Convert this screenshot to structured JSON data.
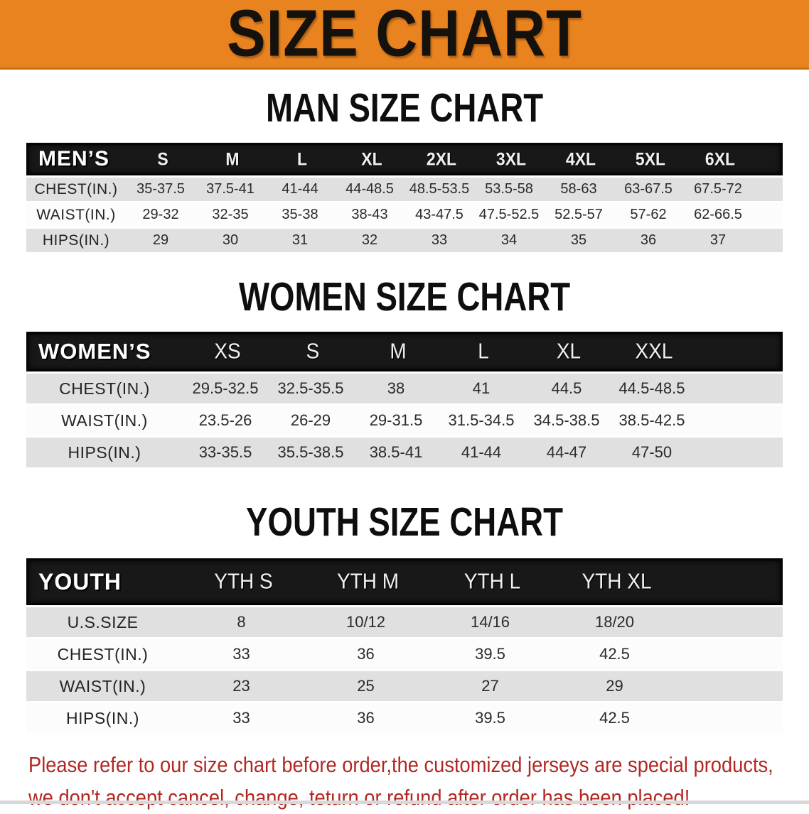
{
  "banner": {
    "title": "SIZE CHART"
  },
  "colors": {
    "banner_bg": "#E8831F",
    "table_header_bg": "#181818",
    "row_gray": "#E0E0E0",
    "row_white": "#FCFCFC",
    "note_red": "#B22722"
  },
  "sections": [
    {
      "heading": "MAN SIZE CHART",
      "table": {
        "header_label": "MEN’S",
        "columns": [
          "S",
          "M",
          "L",
          "XL",
          "2XL",
          "3XL",
          "4XL",
          "5XL",
          "6XL"
        ],
        "rows": [
          {
            "label": "CHEST(IN.)",
            "values": [
              "35-37.5",
              "37.5-41",
              "41-44",
              "44-48.5",
              "48.5-53.5",
              "53.5-58",
              "58-63",
              "63-67.5",
              "67.5-72"
            ]
          },
          {
            "label": "WAIST(IN.)",
            "values": [
              "29-32",
              "32-35",
              "35-38",
              "38-43",
              "43-47.5",
              "47.5-52.5",
              "52.5-57",
              "57-62",
              "62-66.5"
            ]
          },
          {
            "label": "HIPS(IN.)",
            "values": [
              "29",
              "30",
              "31",
              "32",
              "33",
              "34",
              "35",
              "36",
              "37"
            ]
          }
        ]
      }
    },
    {
      "heading": "WOMEN SIZE CHART",
      "table": {
        "header_label": "WOMEN’S",
        "columns": [
          "XS",
          "S",
          "M",
          "L",
          "XL",
          "XXL"
        ],
        "rows": [
          {
            "label": "CHEST(IN.)",
            "values": [
              "29.5-32.5",
              "32.5-35.5",
              "38",
              "41",
              "44.5",
              "44.5-48.5"
            ]
          },
          {
            "label": "WAIST(IN.)",
            "values": [
              "23.5-26",
              "26-29",
              "29-31.5",
              "31.5-34.5",
              "34.5-38.5",
              "38.5-42.5"
            ]
          },
          {
            "label": "HIPS(IN.)",
            "values": [
              "33-35.5",
              "35.5-38.5",
              "38.5-41",
              "41-44",
              "44-47",
              "47-50"
            ]
          }
        ]
      }
    },
    {
      "heading": "YOUTH SIZE CHART",
      "table": {
        "header_label": "YOUTH",
        "columns": [
          "YTH S",
          "YTH M",
          "YTH L",
          "YTH XL"
        ],
        "rows": [
          {
            "label": "U.S.SIZE",
            "values": [
              "8",
              "10/12",
              "14/16",
              "18/20"
            ]
          },
          {
            "label": "CHEST(IN.)",
            "values": [
              "33",
              "36",
              "39.5",
              "42.5"
            ]
          },
          {
            "label": "WAIST(IN.)",
            "values": [
              "23",
              "25",
              "27",
              "29"
            ]
          },
          {
            "label": "HIPS(IN.)",
            "values": [
              "33",
              "36",
              "39.5",
              "42.5"
            ]
          }
        ]
      }
    }
  ],
  "footer": {
    "line1": "Please refer to our size chart before order,the customized jerseys are special products,",
    "line2": "we don't accept cancel, change, teturn or refund after order has been placed!"
  }
}
